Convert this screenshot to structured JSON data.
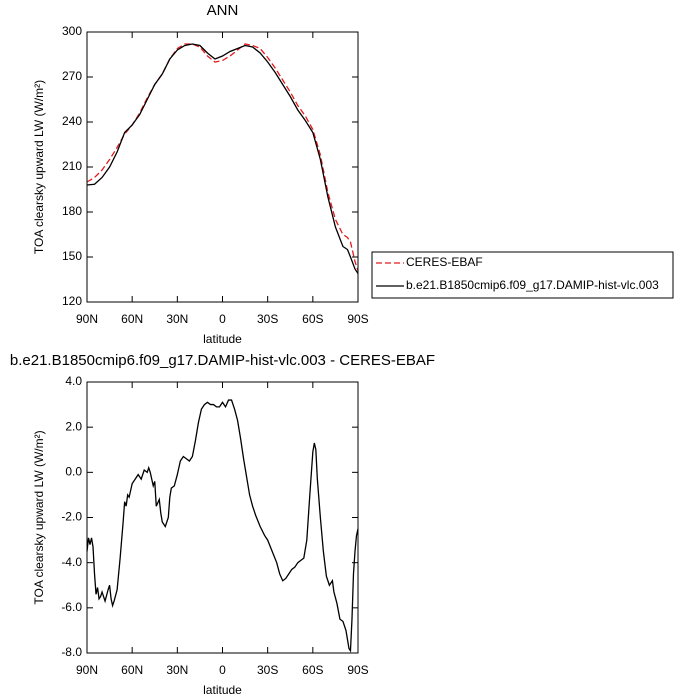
{
  "chart_data": [
    {
      "type": "line",
      "title": "ANN",
      "x_label": "latitude",
      "y_label": "TOA clearsky upward LW (W/m²)",
      "xlim": [
        90,
        -90
      ],
      "xticks": [
        {
          "value": 90,
          "label": "90N"
        },
        {
          "value": 60,
          "label": "60N"
        },
        {
          "value": 30,
          "label": "30N"
        },
        0,
        {
          "value": -30,
          "label": "30S"
        },
        {
          "value": -60,
          "label": "60S"
        },
        {
          "value": -90,
          "label": "90S"
        }
      ],
      "ylim": [
        120,
        300
      ],
      "yticks": [
        120,
        150,
        180,
        210,
        240,
        270,
        300
      ],
      "x": [
        90,
        85,
        80,
        75,
        70,
        65,
        60,
        55,
        50,
        45,
        40,
        35,
        30,
        25,
        20,
        15,
        10,
        5,
        0,
        -5,
        -10,
        -15,
        -20,
        -25,
        -30,
        -35,
        -40,
        -45,
        -50,
        -55,
        -60,
        -65,
        -70,
        -75,
        -80,
        -83,
        -85,
        -88,
        -90
      ],
      "series": [
        {
          "name": "CERES-EBAF",
          "color": "#e41a1c",
          "dash": true,
          "values": [
            200,
            203,
            208,
            215,
            223,
            232,
            238,
            246,
            256,
            265,
            272,
            282,
            289,
            292,
            292,
            290,
            284,
            280,
            281,
            284,
            288,
            292,
            291,
            289,
            283,
            276,
            268,
            260,
            251,
            244,
            235,
            218,
            193,
            175,
            165,
            163,
            160,
            147,
            141
          ]
        },
        {
          "name": "b.e21.B1850cmip6.f09_g17.DAMIP-hist-vlc.003",
          "color": "#000000",
          "dash": false,
          "values": [
            198,
            198.5,
            203,
            210,
            220,
            233,
            238,
            245,
            255,
            265,
            272,
            282,
            288,
            291,
            292,
            291,
            286,
            282,
            284,
            287,
            289,
            291,
            290,
            286,
            280,
            273,
            265,
            257,
            248,
            241,
            233,
            215,
            190,
            170,
            157,
            155,
            150,
            142,
            139
          ]
        }
      ]
    },
    {
      "type": "line",
      "title": "b.e21.B1850cmip6.f09_g17.DAMIP-hist-vlc.003 - CERES-EBAF",
      "x_label": "latitude",
      "y_label": "TOA clearsky upward LW (W/m²)",
      "xlim": [
        90,
        -90
      ],
      "xticks": [
        {
          "value": 90,
          "label": "90N"
        },
        {
          "value": 60,
          "label": "60N"
        },
        {
          "value": 30,
          "label": "30N"
        },
        0,
        {
          "value": -30,
          "label": "30S"
        },
        {
          "value": -60,
          "label": "60S"
        },
        {
          "value": -90,
          "label": "90S"
        }
      ],
      "ylim": [
        -8,
        4
      ],
      "yticks": [
        {
          "value": -8,
          "label": "-8.0"
        },
        {
          "value": -6,
          "label": "-6.0"
        },
        {
          "value": -4,
          "label": "-4.0"
        },
        {
          "value": -2,
          "label": "-2.0"
        },
        {
          "value": 0,
          "label": "0.0"
        },
        {
          "value": 2,
          "label": "2.0"
        },
        {
          "value": 4,
          "label": "4.0"
        }
      ],
      "x": [
        90,
        89,
        88,
        87,
        86,
        85,
        84,
        83,
        82,
        81,
        80,
        78,
        76,
        75,
        74,
        73,
        72,
        70,
        68,
        66,
        65,
        64,
        63,
        62,
        60,
        58,
        56,
        54,
        52,
        50,
        49,
        48,
        46,
        45,
        44,
        42,
        41,
        40,
        38,
        36,
        35,
        34,
        32,
        30,
        28,
        26,
        24,
        22,
        20,
        18,
        16,
        14,
        12,
        10,
        8,
        6,
        4,
        2,
        0,
        -2,
        -4,
        -6,
        -8,
        -10,
        -12,
        -14,
        -16,
        -18,
        -20,
        -22,
        -25,
        -28,
        -30,
        -33,
        -36,
        -38,
        -40,
        -42,
        -44,
        -46,
        -48,
        -50,
        -52,
        -54,
        -56,
        -58,
        -60,
        -61,
        -62,
        -63,
        -65,
        -67,
        -69,
        -71,
        -73,
        -74,
        -76,
        -78,
        -80,
        -82,
        -84,
        -85,
        -86,
        -87,
        -88,
        -89,
        -90
      ],
      "series": [
        {
          "color": "#000000",
          "dash": false,
          "values": [
            -3.5,
            -2.9,
            -3.2,
            -2.9,
            -3.3,
            -4.5,
            -5.4,
            -5.1,
            -5.6,
            -5.5,
            -5.3,
            -5.7,
            -5.2,
            -5.0,
            -5.6,
            -5.9,
            -5.7,
            -5.2,
            -3.8,
            -2.2,
            -1.3,
            -1.5,
            -1.0,
            -1.1,
            -0.5,
            -0.3,
            -0.1,
            -0.3,
            0.1,
            0.0,
            0.2,
            0.0,
            -0.6,
            -0.4,
            -1.5,
            -1.2,
            -1.8,
            -2.2,
            -2.4,
            -2.0,
            -1.1,
            -0.7,
            -0.6,
            -0.1,
            0.5,
            0.7,
            0.6,
            0.5,
            0.7,
            1.4,
            2.2,
            2.8,
            3.0,
            3.1,
            3.0,
            3.0,
            2.9,
            2.9,
            3.1,
            2.9,
            3.2,
            3.2,
            2.8,
            2.3,
            1.5,
            0.6,
            -0.2,
            -1.0,
            -1.5,
            -1.9,
            -2.4,
            -2.8,
            -3.0,
            -3.5,
            -4.0,
            -4.5,
            -4.8,
            -4.7,
            -4.5,
            -4.3,
            -4.2,
            -4.0,
            -3.9,
            -3.8,
            -3.0,
            -1.0,
            0.9,
            1.3,
            1.0,
            -0.3,
            -2.0,
            -3.5,
            -4.6,
            -5.0,
            -4.8,
            -5.3,
            -5.8,
            -6.5,
            -6.6,
            -7.0,
            -7.8,
            -7.9,
            -6.5,
            -4.5,
            -3.5,
            -2.8,
            -2.5
          ]
        }
      ]
    }
  ]
}
